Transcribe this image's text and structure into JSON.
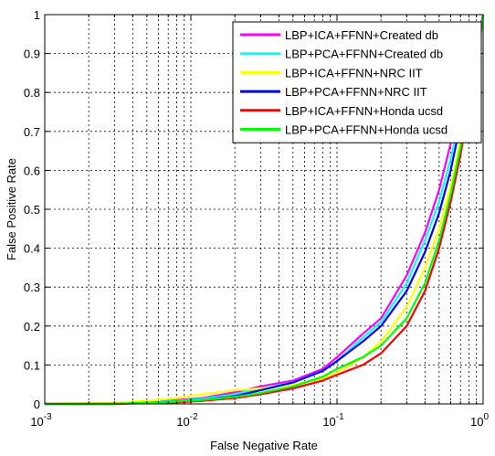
{
  "chart_data": {
    "type": "line",
    "xlabel": "False Negative Rate",
    "ylabel": "False Positive Rate",
    "xscale": "log",
    "xlim": [
      0.001,
      1
    ],
    "ylim": [
      0,
      1
    ],
    "grid": true,
    "legend_position": "top-right",
    "x_ticks": [
      {
        "value": 0.001,
        "base": "10",
        "exp": "-3"
      },
      {
        "value": 0.01,
        "base": "10",
        "exp": "-2"
      },
      {
        "value": 0.1,
        "base": "10",
        "exp": "-1"
      },
      {
        "value": 1,
        "base": "10",
        "exp": "0"
      }
    ],
    "y_ticks": [
      {
        "value": 0,
        "label": "0"
      },
      {
        "value": 0.1,
        "label": "0.1"
      },
      {
        "value": 0.2,
        "label": "0.2"
      },
      {
        "value": 0.3,
        "label": "0.3"
      },
      {
        "value": 0.4,
        "label": "0.4"
      },
      {
        "value": 0.5,
        "label": "0.5"
      },
      {
        "value": 0.6,
        "label": "0.6"
      },
      {
        "value": 0.7,
        "label": "0.7"
      },
      {
        "value": 0.8,
        "label": "0.8"
      },
      {
        "value": 0.9,
        "label": "0.9"
      },
      {
        "value": 1,
        "label": "1"
      }
    ],
    "series": [
      {
        "name": "LBP+ICA+FFNN+Created db",
        "color": "#ff00ff",
        "x": [
          0.001,
          0.003,
          0.005,
          0.008,
          0.012,
          0.02,
          0.03,
          0.05,
          0.08,
          0.1,
          0.15,
          0.2,
          0.3,
          0.4,
          0.5,
          0.6,
          0.7,
          0.8,
          0.9,
          0.97,
          1.0
        ],
        "y": [
          0.0,
          0.0,
          0.005,
          0.01,
          0.015,
          0.03,
          0.045,
          0.06,
          0.09,
          0.12,
          0.18,
          0.22,
          0.33,
          0.44,
          0.55,
          0.67,
          0.78,
          0.87,
          0.94,
          0.98,
          1.0
        ]
      },
      {
        "name": "LBP+PCA+FFNN+Created db",
        "color": "#00ffff",
        "x": [
          0.001,
          0.003,
          0.005,
          0.008,
          0.012,
          0.02,
          0.03,
          0.05,
          0.08,
          0.1,
          0.15,
          0.2,
          0.3,
          0.4,
          0.5,
          0.6,
          0.7,
          0.8,
          0.9,
          0.97,
          1.0
        ],
        "y": [
          0.0,
          0.0,
          0.004,
          0.008,
          0.013,
          0.025,
          0.04,
          0.055,
          0.085,
          0.11,
          0.17,
          0.21,
          0.31,
          0.42,
          0.52,
          0.63,
          0.74,
          0.84,
          0.92,
          0.97,
          1.0
        ]
      },
      {
        "name": "LBP+ICA+FFNN+NRC IIT",
        "color": "#ffff00",
        "x": [
          0.001,
          0.003,
          0.005,
          0.008,
          0.012,
          0.02,
          0.03,
          0.05,
          0.08,
          0.1,
          0.15,
          0.2,
          0.3,
          0.4,
          0.5,
          0.6,
          0.7,
          0.8,
          0.9,
          0.97,
          1.0
        ],
        "y": [
          0.0,
          0.003,
          0.008,
          0.015,
          0.025,
          0.035,
          0.04,
          0.05,
          0.065,
          0.08,
          0.12,
          0.16,
          0.25,
          0.35,
          0.45,
          0.56,
          0.68,
          0.8,
          0.9,
          0.96,
          1.0
        ]
      },
      {
        "name": "LBP+PCA+FFNN+NRC IIT",
        "color": "#0000ff",
        "x": [
          0.001,
          0.003,
          0.005,
          0.008,
          0.012,
          0.02,
          0.03,
          0.05,
          0.08,
          0.1,
          0.15,
          0.2,
          0.3,
          0.4,
          0.5,
          0.6,
          0.7,
          0.8,
          0.9,
          0.97,
          1.0
        ],
        "y": [
          0.0,
          0.0,
          0.003,
          0.006,
          0.01,
          0.02,
          0.035,
          0.055,
          0.085,
          0.11,
          0.16,
          0.2,
          0.29,
          0.39,
          0.49,
          0.6,
          0.72,
          0.83,
          0.92,
          0.97,
          1.0
        ]
      },
      {
        "name": "LBP+ICA+FFNN+Honda ucsd",
        "color": "#ff0000",
        "x": [
          0.001,
          0.003,
          0.005,
          0.008,
          0.012,
          0.02,
          0.03,
          0.05,
          0.08,
          0.1,
          0.15,
          0.2,
          0.3,
          0.4,
          0.5,
          0.6,
          0.7,
          0.8,
          0.9,
          0.97,
          1.0
        ],
        "y": [
          0.0,
          0.0,
          0.002,
          0.004,
          0.008,
          0.015,
          0.025,
          0.04,
          0.06,
          0.075,
          0.1,
          0.13,
          0.2,
          0.29,
          0.4,
          0.52,
          0.64,
          0.77,
          0.88,
          0.96,
          1.0
        ]
      },
      {
        "name": "LBP+PCA+FFNN+Honda ucsd",
        "color": "#00ff00",
        "x": [
          0.001,
          0.003,
          0.005,
          0.008,
          0.012,
          0.02,
          0.03,
          0.05,
          0.08,
          0.1,
          0.15,
          0.2,
          0.3,
          0.4,
          0.5,
          0.6,
          0.7,
          0.8,
          0.9,
          0.97,
          1.0
        ],
        "y": [
          0.0,
          0.0,
          0.003,
          0.006,
          0.01,
          0.018,
          0.028,
          0.045,
          0.07,
          0.09,
          0.12,
          0.15,
          0.22,
          0.31,
          0.42,
          0.54,
          0.66,
          0.79,
          0.89,
          0.96,
          1.0
        ]
      }
    ]
  }
}
